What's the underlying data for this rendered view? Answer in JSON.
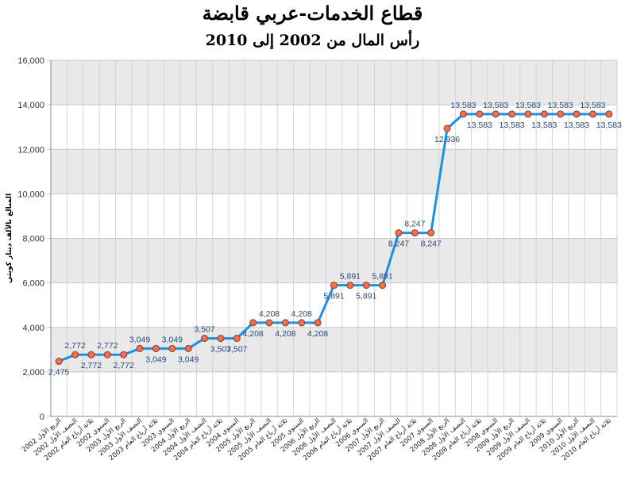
{
  "chart_data": {
    "type": "line",
    "title": "قطاع الخدمات-عربي قابضة",
    "subtitle": "رأس المال من 2002 إلى 2010",
    "ylabel": "المبالغ بالألف دينار كويتي",
    "ylim": [
      0,
      16000
    ],
    "yticks": [
      "0",
      "2,000",
      "4,000",
      "6,000",
      "8,000",
      "10,000",
      "12,000",
      "14,000",
      "16,000"
    ],
    "ytick_values": [
      0,
      2000,
      4000,
      6000,
      8000,
      10000,
      12000,
      14000,
      16000
    ],
    "grid": true,
    "line_color": "#1e90e0",
    "marker_color": "#f07050",
    "band_color": "#e9e9e9",
    "categories": [
      "الربع الأول 2002",
      "النصف الأول 2002",
      "ثلاثة أرباع العام 2002",
      "السنوي 2002",
      "الربع الأول 2003",
      "النصف الأول 2003",
      "ثلاثة أرباع العام 2003",
      "السنوي 2003",
      "الربع الأول 2004",
      "النصف الأول 2004",
      "ثلاثة أرباع العام 2004",
      "السنوي 2004",
      "الربع الأول 2005",
      "النصف الأول 2005",
      "ثلاثة أرباع العام 2005",
      "السنوي 2005",
      "الربع الأول 2006",
      "النصف الأول 2006",
      "ثلاثة أرباع العام 2006",
      "السنوي 2006",
      "الربع الأول 2007",
      "النصف الأول 2007",
      "ثلاثة أرباع العام 2007",
      "السنوي 2007",
      "الربع الأول 2008",
      "النصف الأول 2008",
      "ثلاثة أرباع العام 2008",
      "السنوي 2008",
      "الربع الأول 2009",
      "النصف الأول 2009",
      "ثلاثة أرباع العام 2009",
      "السنوي 2009",
      "الربع الأول 2010",
      "النصف الأول 2010",
      "ثلاثة أرباع العام 2010"
    ],
    "values": [
      2475,
      2772,
      2772,
      2772,
      2772,
      3049,
      3049,
      3049,
      3049,
      3507,
      3507,
      3507,
      4208,
      4208,
      4208,
      4208,
      4208,
      5891,
      5891,
      5891,
      5891,
      8247,
      8247,
      8247,
      12936,
      13583,
      13583,
      13583,
      13583,
      13583,
      13583,
      13583,
      13583,
      13583,
      13583
    ],
    "labels": [
      "2,475",
      "2,772",
      "2,772",
      "2,772",
      "2,772",
      "3,049",
      "3,049",
      "3,049",
      "3,049",
      "3,507",
      "3,507",
      "3,507",
      "4,208",
      "4,208",
      "4,208",
      "4,208",
      "4,208",
      "5,891",
      "5,891",
      "5,891",
      "5,891",
      "8,247",
      "8,247",
      "8,247",
      "12,936",
      "13,583",
      "13,583",
      "13,583",
      "13,583",
      "13,583",
      "13,583",
      "13,583",
      "13,583",
      "13,583",
      "13,583"
    ],
    "label_side": [
      "below",
      "above",
      "below",
      "above",
      "below",
      "above",
      "below",
      "above",
      "below",
      "above",
      "below",
      "below",
      "below",
      "above",
      "below",
      "above",
      "below",
      "below",
      "above",
      "below",
      "above",
      "below",
      "above",
      "below",
      "below",
      "above",
      "below",
      "above",
      "below",
      "above",
      "below",
      "above",
      "below",
      "above",
      "below"
    ]
  }
}
